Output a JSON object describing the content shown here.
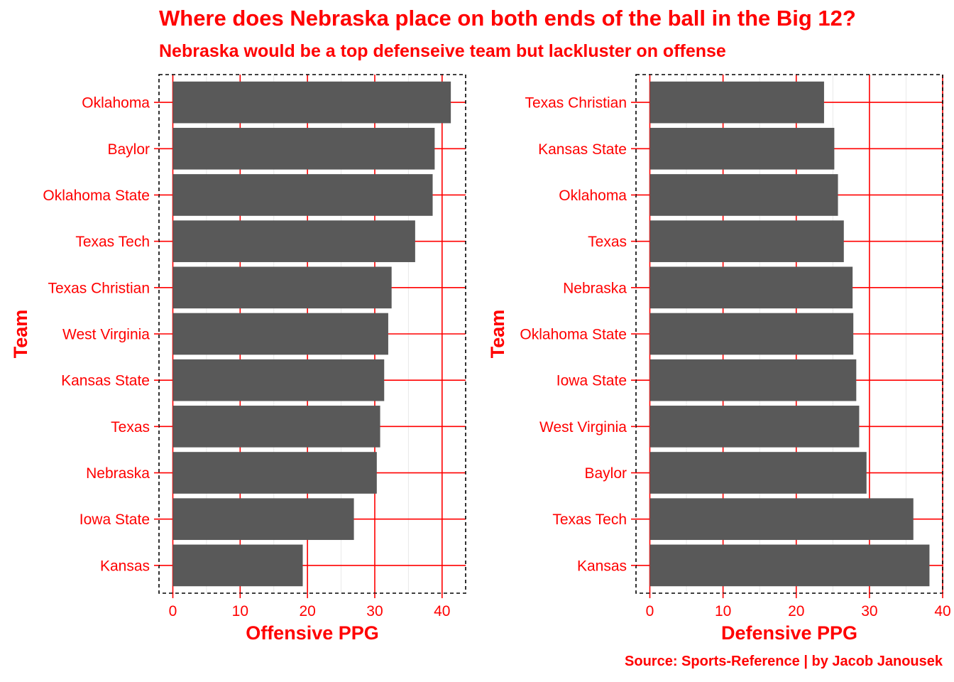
{
  "title": "Where does Nebraska place on both ends of the ball in the Big 12?",
  "subtitle": "Nebraska would be a top defenseive team but lackluster on offense",
  "caption": "Source: Sports-Reference | by Jacob Janousek",
  "colors": {
    "text": "#ff0000",
    "bar": "#595959",
    "grid": "#ff0000",
    "border": "#000000"
  },
  "chart_data": [
    {
      "type": "bar",
      "orientation": "horizontal",
      "xlabel": "Offensive PPG",
      "ylabel": "Team",
      "xlim": [
        0,
        43.5
      ],
      "xticks": [
        0,
        10,
        20,
        30,
        40
      ],
      "categories": [
        "Oklahoma",
        "Baylor",
        "Oklahoma State",
        "Texas Tech",
        "Texas Christian",
        "West Virginia",
        "Kansas State",
        "Texas",
        "Nebraska",
        "Iowa State",
        "Kansas"
      ],
      "values": [
        41.3,
        38.9,
        38.6,
        36.0,
        32.5,
        32.0,
        31.4,
        30.8,
        30.3,
        26.9,
        19.3
      ]
    },
    {
      "type": "bar",
      "orientation": "horizontal",
      "xlabel": "Defensive PPG",
      "ylabel": "Team",
      "xlim": [
        0,
        40
      ],
      "xticks": [
        0,
        10,
        20,
        30,
        40
      ],
      "categories": [
        "Texas Christian",
        "Kansas State",
        "Oklahoma",
        "Texas",
        "Nebraska",
        "Oklahoma State",
        "Iowa State",
        "West Virginia",
        "Baylor",
        "Texas Tech",
        "Kansas"
      ],
      "values": [
        23.8,
        25.2,
        25.7,
        26.5,
        27.7,
        27.8,
        28.2,
        28.6,
        29.6,
        36.0,
        38.2
      ]
    }
  ]
}
